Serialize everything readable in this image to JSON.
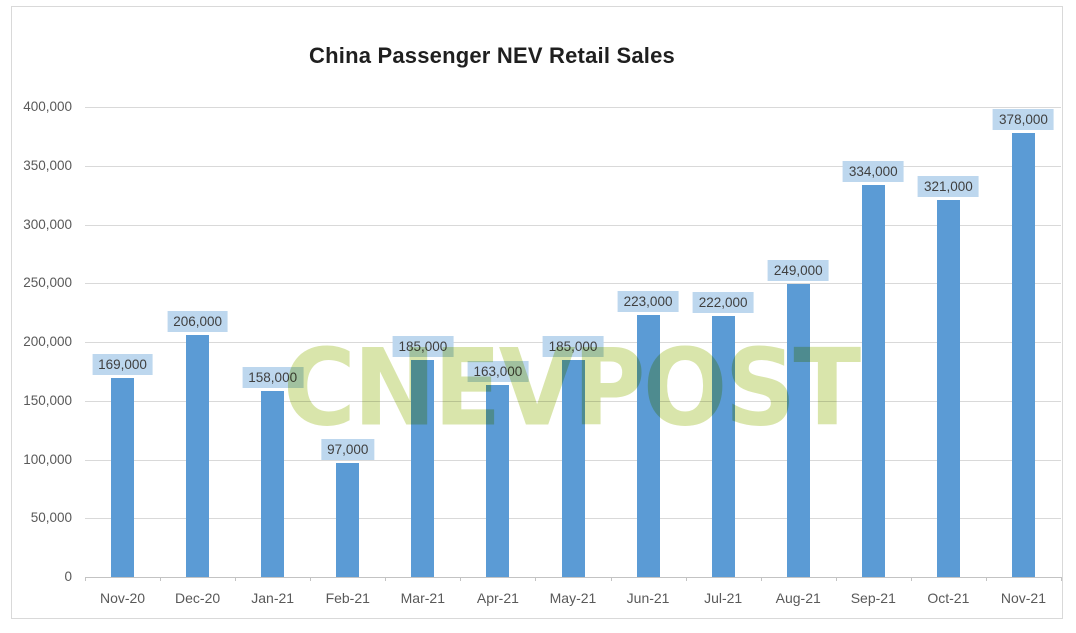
{
  "chart": {
    "title": "China Passenger NEV Retail Sales",
    "watermark_text": "CNEVPOST",
    "colors": {
      "bar": "#5B9BD5",
      "data_label_bg": "#BDD7EE",
      "data_label_text": "#404040",
      "axis_text": "#595959",
      "gridline": "#D9D9D9",
      "axis_line": "#C3C3C3",
      "chart_border": "#D9D9D9",
      "watermark": "#D9E5AB",
      "title_text": "#1F1F1F"
    }
  },
  "chart_data": {
    "type": "bar",
    "title": "China Passenger NEV Retail Sales",
    "categories": [
      "Nov-20",
      "Dec-20",
      "Jan-21",
      "Feb-21",
      "Mar-21",
      "Apr-21",
      "May-21",
      "Jun-21",
      "Jul-21",
      "Aug-21",
      "Sep-21",
      "Oct-21",
      "Nov-21"
    ],
    "values": [
      169000,
      206000,
      158000,
      97000,
      185000,
      163000,
      185000,
      223000,
      222000,
      249000,
      334000,
      321000,
      378000
    ],
    "data_labels": [
      "169,000",
      "206,000",
      "158,000",
      "97,000",
      "185,000",
      "163,000",
      "185,000",
      "223,000",
      "222,000",
      "249,000",
      "334,000",
      "321,000",
      "378,000"
    ],
    "y_tick_labels": [
      "0",
      "50,000",
      "100,000",
      "150,000",
      "200,000",
      "250,000",
      "300,000",
      "350,000",
      "400,000"
    ],
    "xlabel": "",
    "ylabel": "",
    "ylim": [
      0,
      400000
    ],
    "y_step": 50000,
    "grid": true,
    "legend": false,
    "annotations": [
      "CNEVPOST"
    ]
  }
}
